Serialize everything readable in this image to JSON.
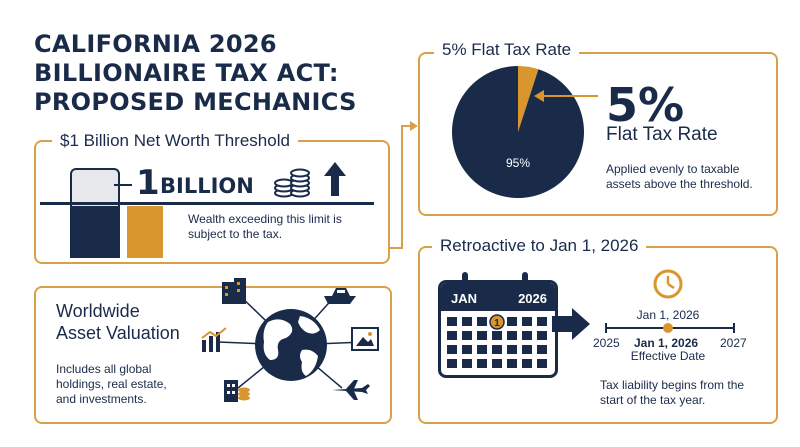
{
  "title": {
    "line1": "CALIFORNIA 2026",
    "line2": "BILLIONAIRE TAX ACT:",
    "line3": "PROPOSED MECHANICS"
  },
  "threshold": {
    "heading": "$1 Billion Net Worth Threshold",
    "number": "1",
    "unit": "BILLION",
    "description": "Wealth exceeding this limit is subject to the tax."
  },
  "flat_tax": {
    "heading": "5% Flat Tax Rate",
    "big_number": "5%",
    "subheading": "Flat Tax Rate",
    "description": "Applied evenly to taxable assets above the threshold.",
    "pie_label": "95%",
    "chart_data": {
      "type": "pie",
      "values": [
        5,
        95
      ],
      "labels": [
        "",
        "95%"
      ],
      "colors": [
        "#d9962e",
        "#1a2b4a"
      ]
    }
  },
  "worldwide": {
    "heading_line1": "Worldwide",
    "heading_line2": "Asset Valuation",
    "description": "Includes all global holdings, real estate, and investments."
  },
  "retroactive": {
    "heading": "Retroactive to Jan 1, 2026",
    "cal_month": "JAN",
    "cal_year": "2026",
    "cal_marker": "1",
    "timeline_top": "Jan 1, 2026",
    "timeline_left": "2025",
    "timeline_mid": "Jan 1, 2026",
    "timeline_right": "2027",
    "timeline_caption": "Effective Date",
    "description": "Tax liability begins from the start of the tax year."
  },
  "colors": {
    "navy": "#1a2b4a",
    "gold": "#d9962e"
  }
}
